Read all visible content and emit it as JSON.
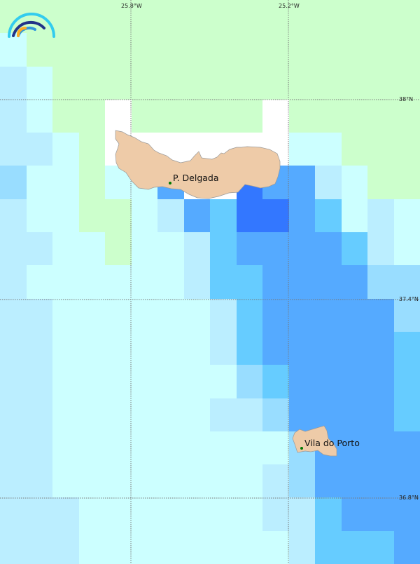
{
  "palette": {
    "G": "#ccffcc",
    "W": "#ffffff",
    "C": "#ccffff",
    "L": "#bbeeff",
    "M": "#99ddff",
    "S": "#66ccff",
    "B": "#55aaff",
    "D": "#3377ff"
  },
  "land_color": "#eecba8",
  "grid_cells": [
    "GGGGGGGGGGGGGGGG",
    "CGGGGGGGGGGGGGGG",
    "LCGGGGGGGGGGGGGG",
    "LCGGWGGGGGWGGGGG",
    "LLCGWWWWWWWCCGGG",
    "MCCGCCBWWDBBLCGG",
    "LCCGGCLBSDDBSCLC",
    "LLCCGCCLSBBBBSLC",
    "LCCCCCCLSSBBBBMM",
    "LLCCCCCCLSBBBBBM",
    "LLCCCCCCLSBBBBBS",
    "LLCCCCCCCMSBBBBS",
    "LLCCCCCCLLMBBBBS",
    "LLCCCCCCCCCMBBBB",
    "LLCCCCCCCCLMBBBB",
    "LLLCCCCCCCLLSBBB",
    "LLLCCCCCCCCLSSSB"
  ],
  "graticule": {
    "lon_labels": [
      "25.8°W",
      "25.2°W"
    ],
    "lat_labels": [
      "38°N",
      "37.4°N",
      "36.8°N"
    ]
  },
  "cities": [
    {
      "name": "P. Delgada"
    },
    {
      "name": "Vila do Porto"
    }
  ],
  "logo": {
    "icon": "rainbow-arcs-logo"
  }
}
